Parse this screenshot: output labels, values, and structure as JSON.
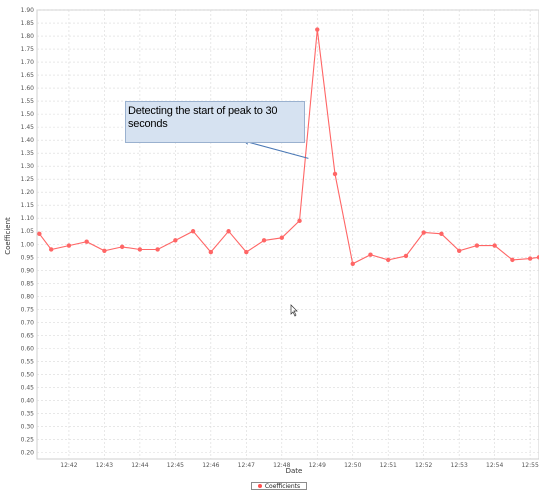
{
  "chart_data": {
    "type": "line",
    "xlabel": "Date",
    "ylabel": "Coefficient",
    "ylim": [
      0.175,
      1.9
    ],
    "yticks": [
      "0.20",
      "0.25",
      "0.30",
      "0.35",
      "0.40",
      "0.45",
      "0.50",
      "0.55",
      "0.60",
      "0.65",
      "0.70",
      "0.75",
      "0.80",
      "0.85",
      "0.90",
      "0.95",
      "1.00",
      "1.05",
      "1.10",
      "1.15",
      "1.20",
      "1.25",
      "1.30",
      "1.35",
      "1.40",
      "1.45",
      "1.50",
      "1.55",
      "1.60",
      "1.65",
      "1.70",
      "1.75",
      "1.80",
      "1.85",
      "1.90"
    ],
    "xticks": [
      "12:42",
      "12:43",
      "12:44",
      "12:45",
      "12:46",
      "12:47",
      "12:48",
      "12:49",
      "12:50",
      "12:51",
      "12:52",
      "12:53",
      "12:54",
      "12:55"
    ],
    "xlim": [
      "12:41:06",
      "12:55:15"
    ],
    "x": [
      "12:41:10",
      "12:41:30",
      "12:42:00",
      "12:42:30",
      "12:43:00",
      "12:43:30",
      "12:44:00",
      "12:44:30",
      "12:45:00",
      "12:45:30",
      "12:46:00",
      "12:46:30",
      "12:47:00",
      "12:47:30",
      "12:48:00",
      "12:48:30",
      "12:49:00",
      "12:49:30",
      "12:50:00",
      "12:50:30",
      "12:51:00",
      "12:51:30",
      "12:52:00",
      "12:52:30",
      "12:53:00",
      "12:53:30",
      "12:54:00",
      "12:54:30",
      "12:55:00",
      "12:55:15"
    ],
    "series": [
      {
        "name": "Coefficients",
        "color": "#ff6666",
        "values": [
          1.04,
          0.98,
          0.995,
          1.01,
          0.975,
          0.99,
          0.98,
          0.98,
          1.015,
          1.05,
          0.97,
          1.05,
          0.97,
          1.015,
          1.025,
          1.09,
          1.825,
          1.27,
          0.925,
          0.96,
          0.94,
          0.955,
          1.045,
          1.04,
          0.975,
          0.995,
          0.995,
          0.94,
          0.945,
          0.95
        ]
      }
    ],
    "legend": "bottom",
    "grid": true,
    "annotation": {
      "text": "Detecting the start of peak to 30 seconds",
      "arrow_target": {
        "x": "12:48:45",
        "y": 1.33
      }
    }
  }
}
